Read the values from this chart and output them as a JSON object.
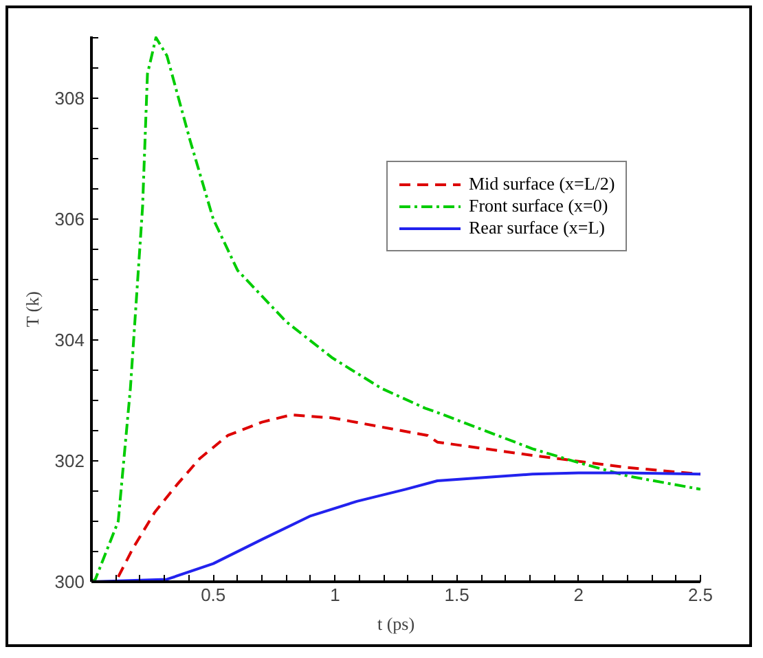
{
  "chart_data": {
    "type": "line",
    "xlabel": "t (ps)",
    "ylabel": "T (k)",
    "xlim": [
      0,
      2.5
    ],
    "ylim": [
      300,
      309.02
    ],
    "xticks": [
      {
        "value": 0.1,
        "label": null
      },
      {
        "value": 0.2,
        "label": null
      },
      {
        "value": 0.3,
        "label": null
      },
      {
        "value": 0.4,
        "label": null
      },
      0.5,
      {
        "value": 0.6,
        "label": null
      },
      {
        "value": 0.7,
        "label": null
      },
      {
        "value": 0.8,
        "label": null
      },
      {
        "value": 0.9,
        "label": null
      },
      1,
      {
        "value": 1.1,
        "label": null
      },
      {
        "value": 1.2,
        "label": null
      },
      {
        "value": 1.3,
        "label": null
      },
      {
        "value": 1.4,
        "label": null
      },
      1.5,
      {
        "value": 1.6,
        "label": null
      },
      {
        "value": 1.7,
        "label": null
      },
      {
        "value": 1.8,
        "label": null
      },
      {
        "value": 1.9,
        "label": null
      },
      2,
      {
        "value": 2.1,
        "label": null
      },
      {
        "value": 2.2,
        "label": null
      },
      {
        "value": 2.3,
        "label": null
      },
      {
        "value": 2.4,
        "label": null
      },
      2.5
    ],
    "yticks": [
      300,
      {
        "value": 300.5,
        "label": null
      },
      {
        "value": 301,
        "label": null
      },
      {
        "value": 301.5,
        "label": null
      },
      302,
      {
        "value": 302.5,
        "label": null
      },
      {
        "value": 303,
        "label": null
      },
      {
        "value": 303.5,
        "label": null
      },
      304,
      {
        "value": 304.5,
        "label": null
      },
      {
        "value": 305,
        "label": null
      },
      {
        "value": 305.5,
        "label": null
      },
      306,
      {
        "value": 306.5,
        "label": null
      },
      {
        "value": 307,
        "label": null
      },
      {
        "value": 307.5,
        "label": null
      },
      308,
      {
        "value": 308.5,
        "label": null
      },
      {
        "value": 309,
        "label": null
      }
    ],
    "grid": false,
    "legend": "right",
    "marker": "none",
    "series": [
      {
        "name": "Mid surface (x=L/2)",
        "color": "#dd0000",
        "line_style": "dashed",
        "x": [
          0.11,
          0.17,
          0.26,
          0.35,
          0.445,
          0.56,
          0.7,
          0.82,
          0.99,
          1.19,
          1.38,
          1.42,
          1.81,
          2.2,
          2.5
        ],
        "values": [
          300.08,
          300.55,
          301.15,
          301.6,
          302.04,
          302.42,
          302.64,
          302.76,
          302.71,
          302.56,
          302.42,
          302.31,
          302.09,
          301.89,
          301.78
        ]
      },
      {
        "name": "Front surface (x=0)",
        "color": "#00cc00",
        "line_style": "dashdot",
        "x": [
          0.0,
          0.016,
          0.11,
          0.16,
          0.21,
          0.23,
          0.265,
          0.31,
          0.405,
          0.5,
          0.6,
          0.8,
          0.99,
          1.19,
          1.37,
          1.42,
          1.81,
          2.0,
          2.2,
          2.5
        ],
        "values": [
          300.0,
          300.04,
          301.0,
          303.2,
          306.2,
          308.4,
          309.0,
          308.7,
          307.3,
          306.0,
          305.15,
          304.3,
          303.7,
          303.2,
          302.87,
          302.8,
          302.2,
          301.97,
          301.75,
          301.53
        ]
      },
      {
        "name": "Rear surface (x=L)",
        "color": "#2222ee",
        "line_style": "solid",
        "x": [
          0.0,
          0.31,
          0.5,
          0.7,
          0.9,
          1.09,
          1.29,
          1.42,
          1.81,
          2.0,
          2.2,
          2.5
        ],
        "values": [
          300.0,
          300.04,
          300.3,
          300.7,
          301.09,
          301.33,
          301.53,
          301.67,
          301.78,
          301.8,
          301.8,
          301.78
        ]
      }
    ]
  }
}
